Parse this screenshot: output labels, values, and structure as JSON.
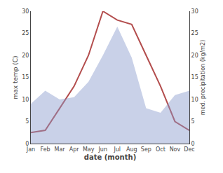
{
  "chart_data": {
    "type": "line",
    "categories": [
      "Jan",
      "Feb",
      "Mar",
      "Apr",
      "May",
      "Jun",
      "Jul",
      "Aug",
      "Sep",
      "Oct",
      "Nov",
      "Dec"
    ],
    "series": [
      {
        "type": "line",
        "color": "#b34d4d",
        "values": [
          2.5,
          3.0,
          8.0,
          13.0,
          20.0,
          30.0,
          28.0,
          27.0,
          20.0,
          13.0,
          5.0,
          3.0
        ]
      },
      {
        "type": "area",
        "color": "#8899cc",
        "axis": "y2",
        "values": [
          9.0,
          12.0,
          10.0,
          10.5,
          14.0,
          20.0,
          26.5,
          19.5,
          8.0,
          7.0,
          11.0,
          12.0
        ]
      }
    ],
    "xlabel": "date (month)",
    "ylabel": "max temp (C)",
    "y2label": "med. precipitation (kg/m2)",
    "ylim": [
      0,
      30
    ],
    "yticks": [
      0,
      5,
      10,
      15,
      20,
      25,
      30
    ],
    "y2lim": [
      0,
      30
    ],
    "y2ticks": [
      0,
      5,
      10,
      15,
      20,
      25,
      30
    ],
    "grid": false
  }
}
